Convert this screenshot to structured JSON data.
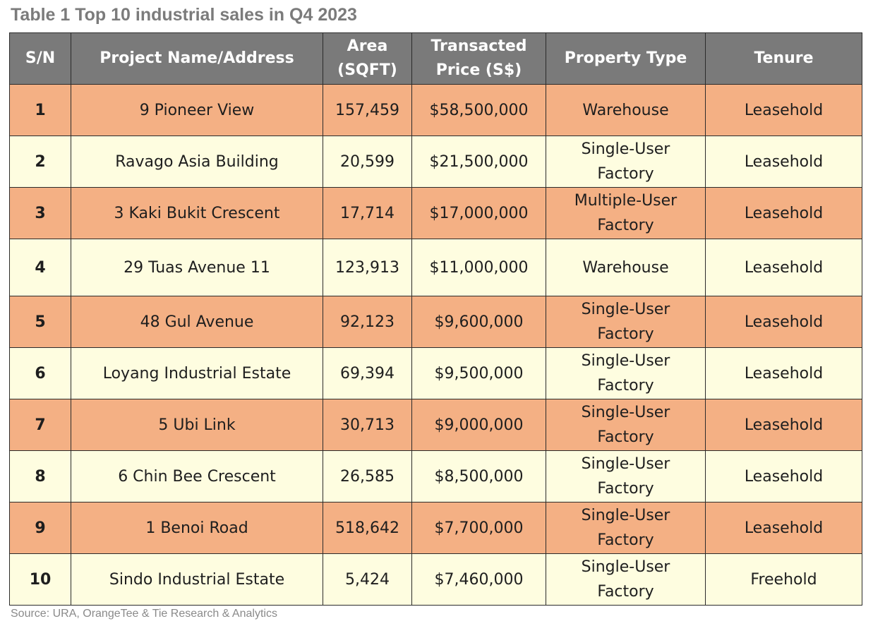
{
  "title": "Table 1 Top 10 industrial sales in Q4 2023",
  "headers": {
    "sn": "S/N",
    "project": "Project Name/Address",
    "area_l1": "Area",
    "area_l2": "(SQFT)",
    "price_l1": "Transacted",
    "price_l2": "Price (S$)",
    "type": "Property Type",
    "tenure": "Tenure"
  },
  "rows": [
    {
      "sn": "1",
      "project": "9 Pioneer View",
      "area": "157,459",
      "price": "$58,500,000",
      "type_l1": "Warehouse",
      "type_l2": "",
      "tenure": "Leasehold"
    },
    {
      "sn": "2",
      "project": "Ravago Asia Building",
      "area": "20,599",
      "price": "$21,500,000",
      "type_l1": "Single-User",
      "type_l2": "Factory",
      "tenure": "Leasehold"
    },
    {
      "sn": "3",
      "project": "3 Kaki Bukit Crescent",
      "area": "17,714",
      "price": "$17,000,000",
      "type_l1": "Multiple-User",
      "type_l2": "Factory",
      "tenure": "Leasehold"
    },
    {
      "sn": "4",
      "project": "29 Tuas Avenue 11",
      "area": "123,913",
      "price": "$11,000,000",
      "type_l1": "Warehouse",
      "type_l2": "",
      "tenure": "Leasehold"
    },
    {
      "sn": "5",
      "project": "48 Gul Avenue",
      "area": "92,123",
      "price": "$9,600,000",
      "type_l1": "Single-User",
      "type_l2": "Factory",
      "tenure": "Leasehold"
    },
    {
      "sn": "6",
      "project": "Loyang Industrial Estate",
      "area": "69,394",
      "price": "$9,500,000",
      "type_l1": "Single-User",
      "type_l2": "Factory",
      "tenure": "Leasehold"
    },
    {
      "sn": "7",
      "project": "5 Ubi Link",
      "area": "30,713",
      "price": "$9,000,000",
      "type_l1": "Single-User",
      "type_l2": "Factory",
      "tenure": "Leasehold"
    },
    {
      "sn": "8",
      "project": "6 Chin Bee Crescent",
      "area": "26,585",
      "price": "$8,500,000",
      "type_l1": "Single-User",
      "type_l2": "Factory",
      "tenure": "Leasehold"
    },
    {
      "sn": "9",
      "project": "1 Benoi Road",
      "area": "518,642",
      "price": "$7,700,000",
      "type_l1": "Single-User",
      "type_l2": "Factory",
      "tenure": "Leasehold"
    },
    {
      "sn": "10",
      "project": "Sindo Industrial Estate",
      "area": "5,424",
      "price": "$7,460,000",
      "type_l1": "Single-User",
      "type_l2": "Factory",
      "tenure": "Freehold"
    }
  ],
  "source": "Source: URA, OrangeTee & Tie Research & Analytics",
  "colors": {
    "header_bg": "#7a7a7a",
    "row_odd_bg": "#f4b084",
    "row_even_bg": "#fefde0",
    "title_text": "#7b7b7b"
  }
}
